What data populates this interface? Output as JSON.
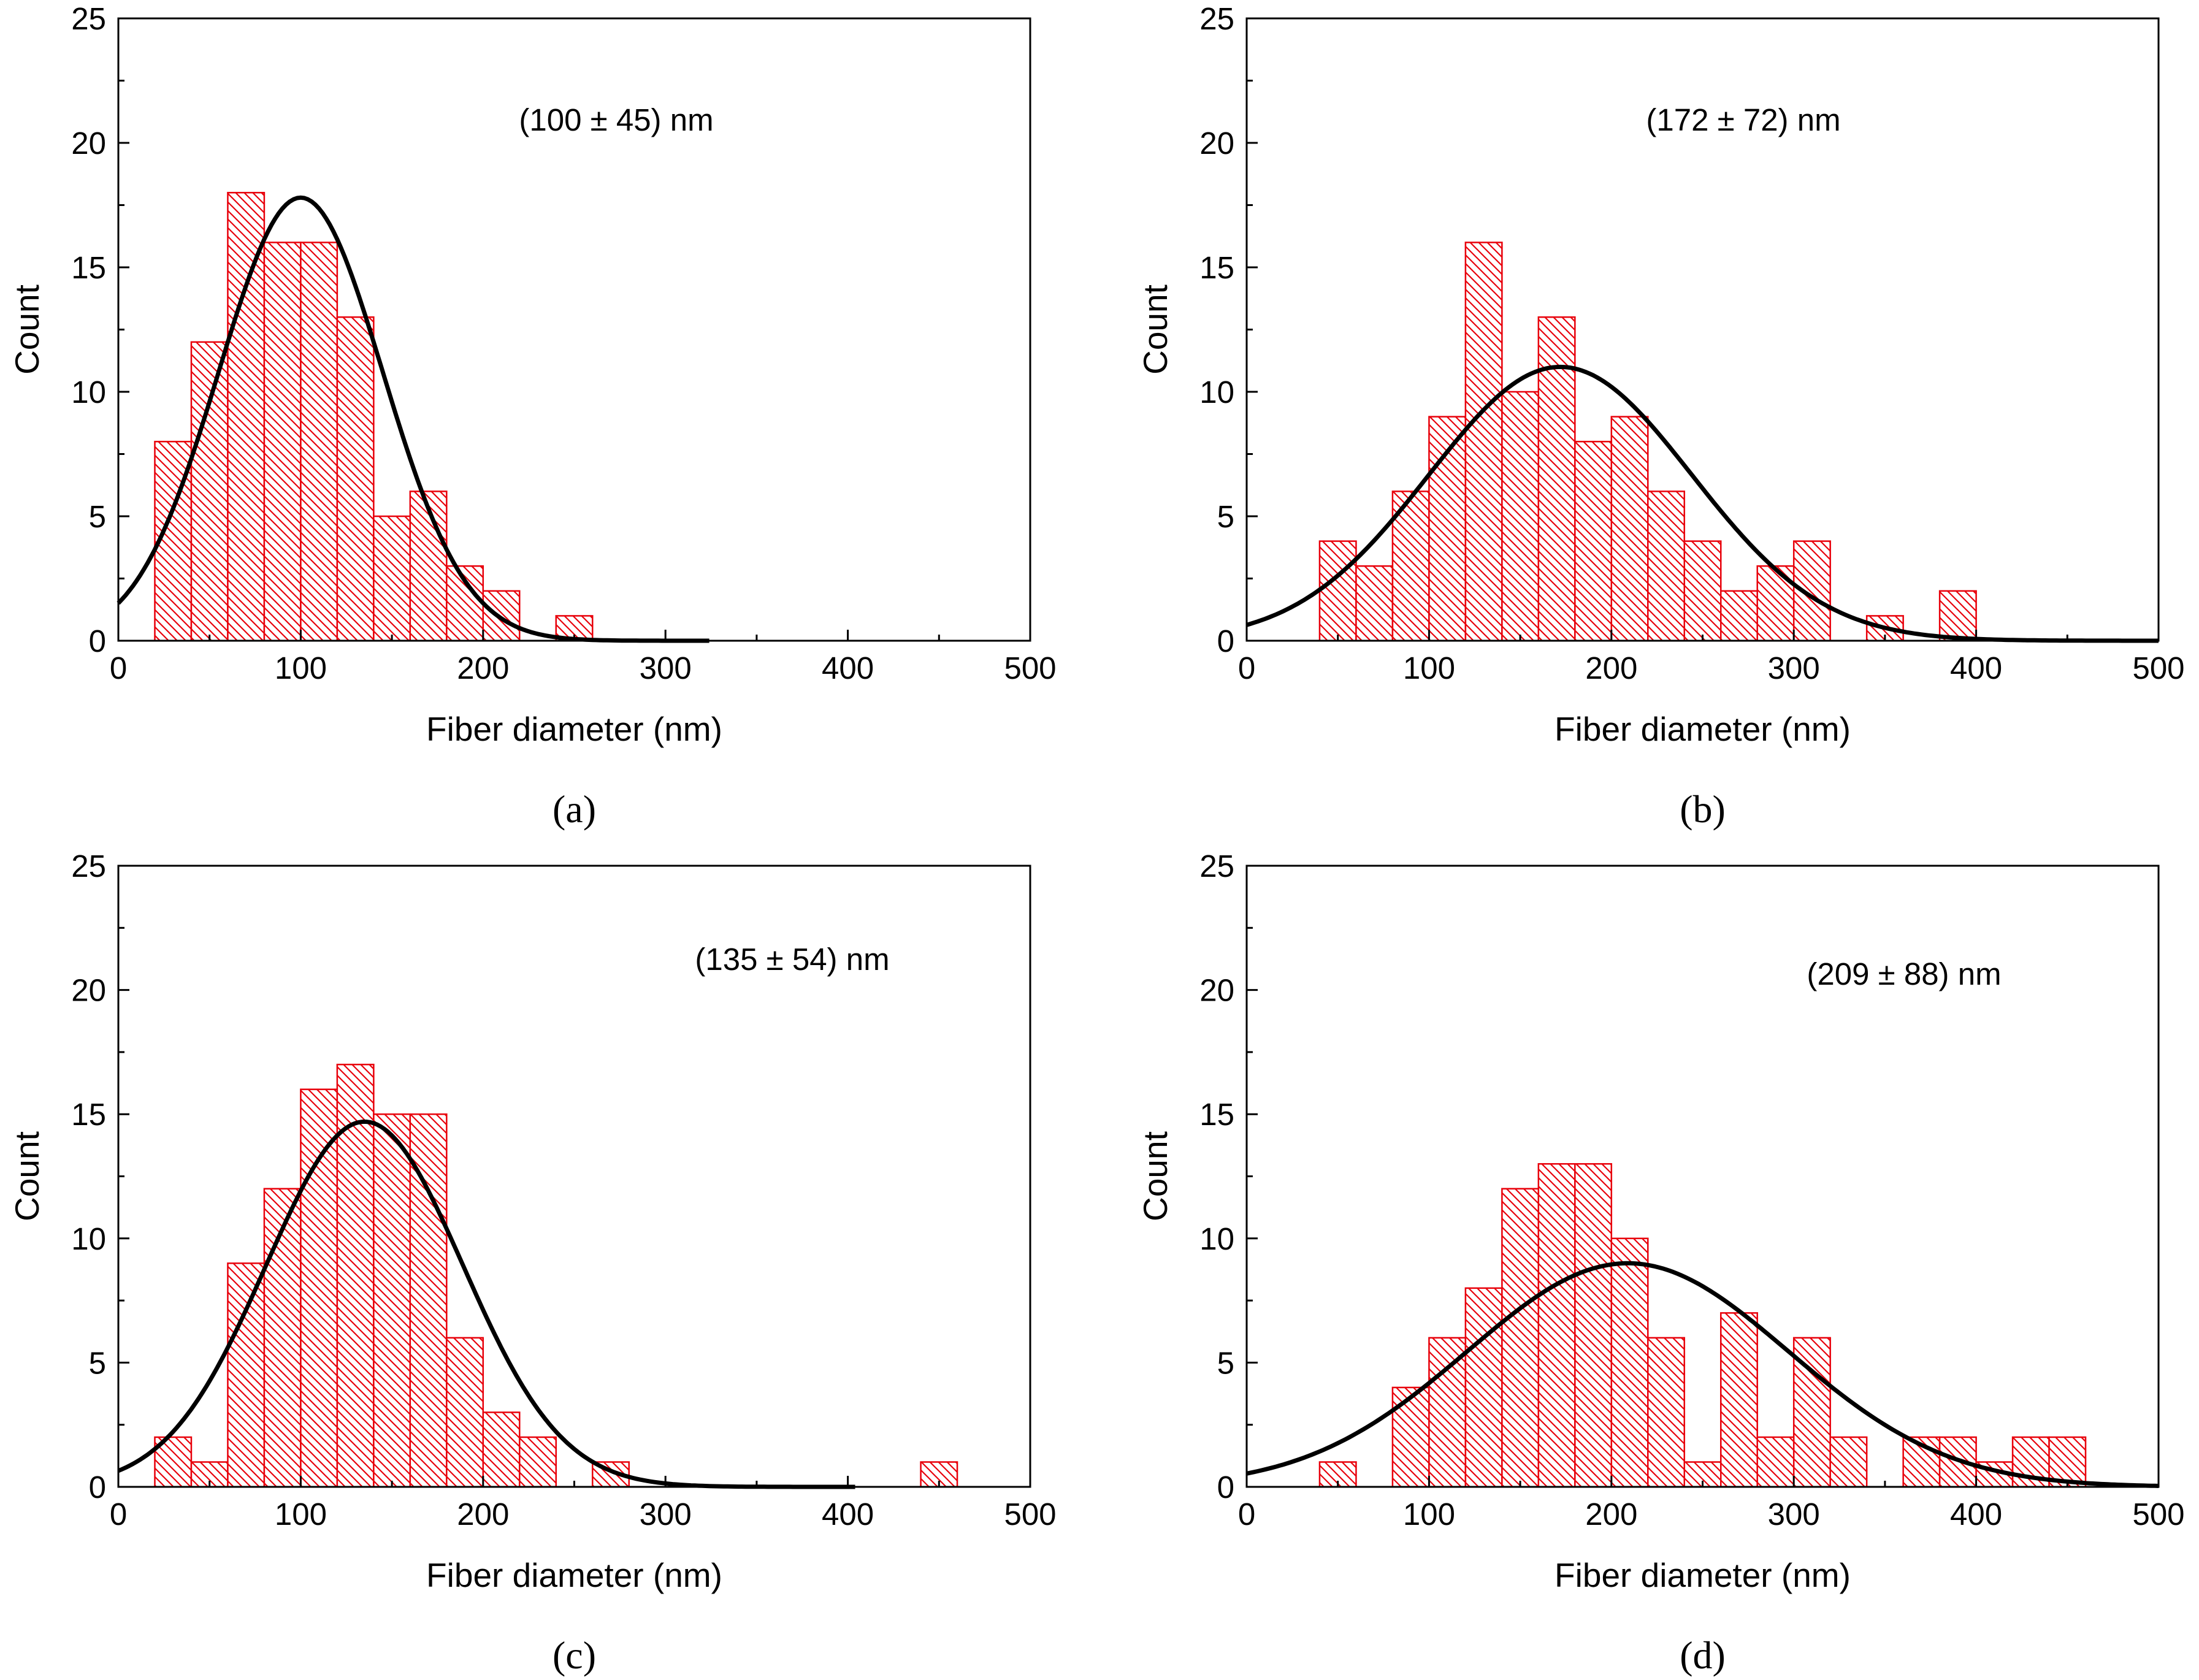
{
  "chart_data": [
    {
      "type": "bar",
      "panel_label": "(a)",
      "annotation": "(100 ± 45) nm",
      "xlabel": "Fiber diameter (nm)",
      "ylabel": "Count",
      "xlim": [
        0,
        500
      ],
      "ylim": [
        0,
        25
      ],
      "xticks": [
        "0",
        "100",
        "200",
        "300",
        "400",
        "500"
      ],
      "yticks": [
        "0",
        "5",
        "10",
        "15",
        "20",
        "25"
      ],
      "bin_width": 20,
      "bin_starts": [
        20,
        40,
        60,
        80,
        100,
        120,
        140,
        160,
        180,
        200,
        220,
        240
      ],
      "values": [
        8,
        12,
        18,
        16,
        16,
        13,
        5,
        6,
        3,
        2,
        0,
        1
      ],
      "fit": {
        "type": "gaussian",
        "mean": 100,
        "sd": 45,
        "peak": 17.8
      },
      "bar_color": "#e8000b",
      "fit_color": "#000000"
    },
    {
      "type": "bar",
      "panel_label": "(b)",
      "annotation": "(172 ± 72) nm",
      "xlabel": "Fiber diameter (nm)",
      "ylabel": "Count",
      "xlim": [
        0,
        500
      ],
      "ylim": [
        0,
        25
      ],
      "xticks": [
        "0",
        "100",
        "200",
        "300",
        "400",
        "500"
      ],
      "yticks": [
        "0",
        "5",
        "10",
        "15",
        "20",
        "25"
      ],
      "bin_width": 20,
      "bin_starts": [
        40,
        60,
        80,
        100,
        120,
        140,
        160,
        180,
        200,
        220,
        240,
        260,
        280,
        300,
        320,
        340,
        360,
        380
      ],
      "values": [
        4,
        3,
        6,
        9,
        16,
        10,
        13,
        8,
        9,
        6,
        4,
        2,
        3,
        4,
        0,
        1,
        0,
        2
      ],
      "fit": {
        "type": "gaussian",
        "mean": 172,
        "sd": 72,
        "peak": 11.0
      },
      "bar_color": "#e8000b",
      "fit_color": "#000000"
    },
    {
      "type": "bar",
      "panel_label": "(c)",
      "annotation": "(135 ± 54) nm",
      "xlabel": "Fiber diameter (nm)",
      "ylabel": "Count",
      "xlim": [
        0,
        500
      ],
      "ylim": [
        0,
        25
      ],
      "xticks": [
        "0",
        "100",
        "200",
        "300",
        "400",
        "500"
      ],
      "yticks": [
        "0",
        "5",
        "10",
        "15",
        "20",
        "25"
      ],
      "bin_width": 20,
      "bin_starts": [
        20,
        40,
        60,
        80,
        100,
        120,
        140,
        160,
        180,
        200,
        220,
        240,
        260,
        280,
        300,
        320,
        340,
        360,
        380,
        400,
        420,
        440
      ],
      "values": [
        2,
        1,
        9,
        12,
        16,
        17,
        15,
        15,
        6,
        3,
        2,
        0,
        1,
        0,
        0,
        0,
        0,
        0,
        0,
        0,
        0,
        1
      ],
      "fit": {
        "type": "gaussian",
        "mean": 135,
        "sd": 54,
        "peak": 14.7
      },
      "bar_color": "#e8000b",
      "fit_color": "#000000"
    },
    {
      "type": "bar",
      "panel_label": "(d)",
      "annotation": "(209 ± 88) nm",
      "xlabel": "Fiber diameter (nm)",
      "ylabel": "Count",
      "xlim": [
        0,
        500
      ],
      "ylim": [
        0,
        25
      ],
      "xticks": [
        "0",
        "100",
        "200",
        "300",
        "400",
        "500"
      ],
      "yticks": [
        "0",
        "5",
        "10",
        "15",
        "20",
        "25"
      ],
      "bin_width": 20,
      "bin_starts": [
        40,
        60,
        80,
        100,
        120,
        140,
        160,
        180,
        200,
        220,
        240,
        260,
        280,
        300,
        320,
        340,
        360,
        380,
        400,
        420,
        440
      ],
      "values": [
        1,
        0,
        4,
        6,
        8,
        12,
        13,
        13,
        10,
        6,
        1,
        7,
        2,
        6,
        2,
        0,
        2,
        2,
        1,
        2,
        2
      ],
      "fit": {
        "type": "gaussian",
        "mean": 209,
        "sd": 88,
        "peak": 9.0
      },
      "bar_color": "#e8000b",
      "fit_color": "#000000"
    }
  ]
}
